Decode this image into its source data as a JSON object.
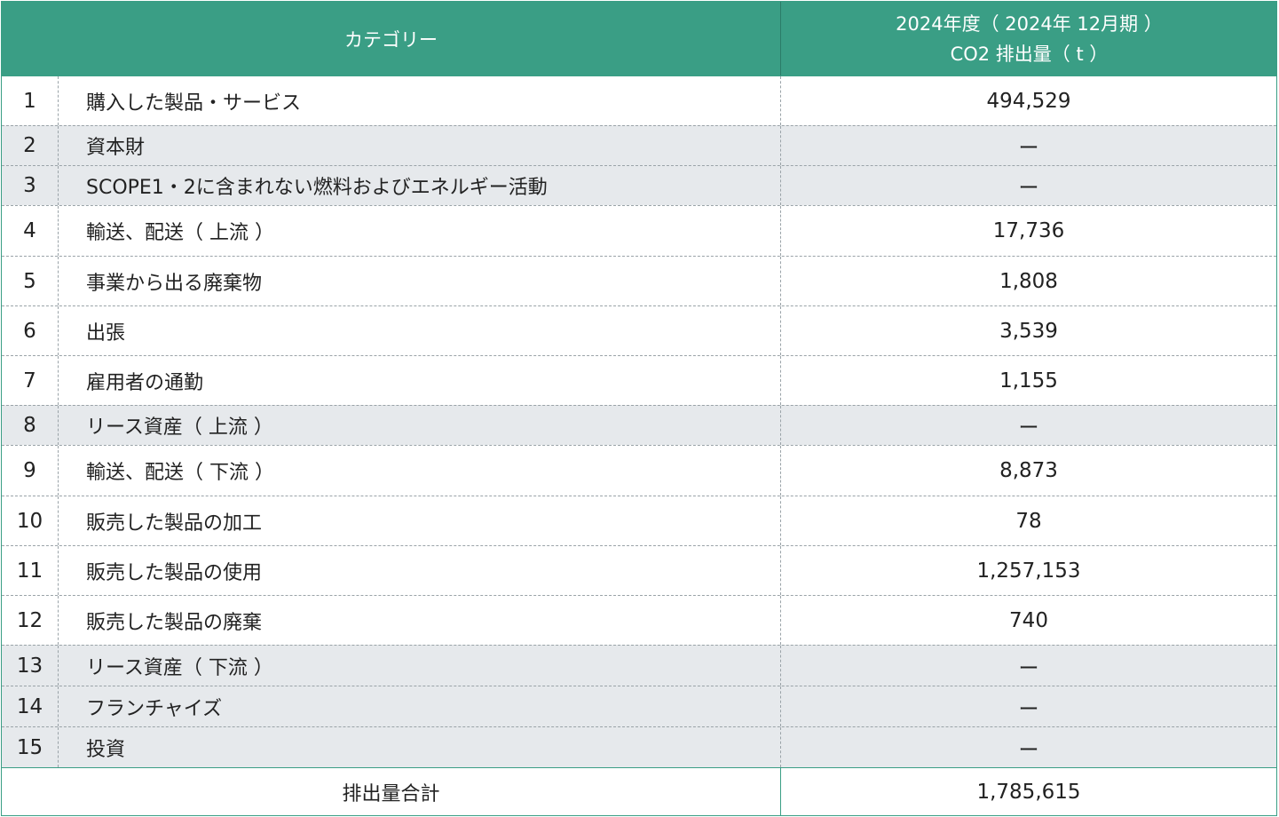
{
  "header": {
    "category": "カテゴリー",
    "value_line1": "2024年度（ 2024年 12月期 ）",
    "value_line2": "CO2 排出量（ t ）"
  },
  "rows": [
    {
      "num": "1",
      "name": "購入した製品・サービス",
      "value": "494,529",
      "shaded": false
    },
    {
      "num": "2",
      "name": "資本財",
      "value": "ー",
      "shaded": true
    },
    {
      "num": "3",
      "name": "SCOPE1・2に含まれない燃料およびエネルギー活動",
      "value": "ー",
      "shaded": true
    },
    {
      "num": "4",
      "name": "輸送、配送（ 上流 ）",
      "value": "17,736",
      "shaded": false
    },
    {
      "num": "5",
      "name": "事業から出る廃棄物",
      "value": "1,808",
      "shaded": false
    },
    {
      "num": "6",
      "name": "出張",
      "value": "3,539",
      "shaded": false
    },
    {
      "num": "7",
      "name": "雇用者の通勤",
      "value": "1,155",
      "shaded": false
    },
    {
      "num": "8",
      "name": "リース資産（ 上流 ）",
      "value": "ー",
      "shaded": true
    },
    {
      "num": "9",
      "name": "輸送、配送（ 下流 ）",
      "value": "8,873",
      "shaded": false
    },
    {
      "num": "10",
      "name": "販売した製品の加工",
      "value": "78",
      "shaded": false
    },
    {
      "num": "11",
      "name": "販売した製品の使用",
      "value": "1,257,153",
      "shaded": false
    },
    {
      "num": "12",
      "name": "販売した製品の廃棄",
      "value": "740",
      "shaded": false
    },
    {
      "num": "13",
      "name": "リース資産（ 下流 ）",
      "value": "ー",
      "shaded": true
    },
    {
      "num": "14",
      "name": "フランチャイズ",
      "value": "ー",
      "shaded": true
    },
    {
      "num": "15",
      "name": "投資",
      "value": "ー",
      "shaded": true
    }
  ],
  "total": {
    "label": "排出量合計",
    "value": "1,785,615"
  }
}
